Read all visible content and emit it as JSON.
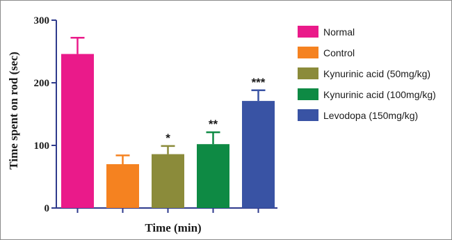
{
  "chart_data": {
    "type": "bar",
    "title": "",
    "xlabel": "Time (min)",
    "ylabel": "Time spent on rod (sec)",
    "ylim": [
      0,
      300
    ],
    "yticks": [
      0,
      100,
      200,
      300
    ],
    "grid": false,
    "legend_position": "right",
    "series": [
      {
        "name": "Normal",
        "value": 246,
        "error": 26,
        "significance": "",
        "color": "#ea1a8a"
      },
      {
        "name": "Control",
        "value": 70,
        "error": 14,
        "significance": "",
        "color": "#f58220"
      },
      {
        "name": "Kynurinic acid (50mg/kg)",
        "value": 86,
        "error": 13,
        "significance": "*",
        "color": "#8b8b3a"
      },
      {
        "name": "Kynurinic acid (100mg/kg)",
        "value": 102,
        "error": 19,
        "significance": "**",
        "color": "#0e8a44"
      },
      {
        "name": "Levodopa (150mg/kg)",
        "value": 171,
        "error": 17,
        "significance": "***",
        "color": "#3953a4"
      }
    ],
    "axis_color": "#2e3a8c"
  }
}
